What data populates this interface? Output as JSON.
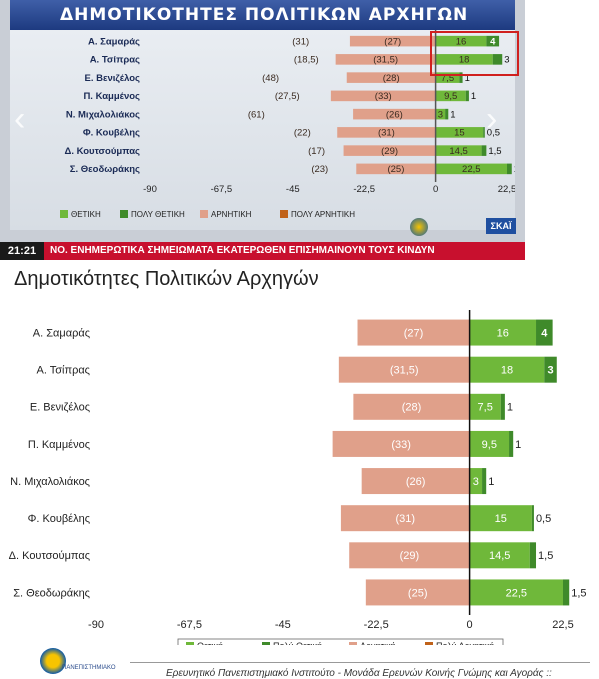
{
  "tv_panel": {
    "title": "ΔΗΜΟΤΙΚΟΤΗΤΕΣ ΠΟΛΙΤΙΚΩΝ ΑΡΧΗΓΩΝ",
    "time": "21:21",
    "ticker": "ΝΟ. ΕΝΗΜΕΡΩΤΙΚΑ ΣΗΜΕΙΩΜΑΤΑ ΕΚΑΤΕΡΩΘΕΝ ΕΠΙΣΗΜΑΙΝΟΥΝ ΤΟΥΣ ΚΙΝΔΥΝ",
    "channel_logo": "ΣΚΑΪ",
    "nav_left_icon": "chevron-left-icon",
    "nav_right_icon": "chevron-right-icon",
    "legend": [
      "ΘΕΤΙΚΗ",
      "ΠΟΛΥ ΘΕΤΙΚΗ",
      "ΑΡΝΗΤΙΚΗ",
      "ΠΟΛΥ ΑΡΝΗΤΙΚΗ"
    ],
    "highlight_color": "#d0201e"
  },
  "colors": {
    "positive": "#6fb83a",
    "very_positive": "#3f8a2a",
    "negative": "#e0a08a",
    "very_negative": "#c0621a"
  },
  "footer": {
    "text": "Ερευνητικό Πανεπιστημιακό Ινστιτούτο - Μονάδα Ερευνών Κοινής Γνώμης και Αγοράς ::",
    "logo_caption": "ΠΑΝΕΠΙΣΤΗΜΙΑΚΟ"
  },
  "chart_data": {
    "type": "bar",
    "orientation": "horizontal-diverging",
    "title": "Δημοτικότητες Πολιτικών Αρχηγών",
    "xlim": [
      -90,
      22.5
    ],
    "xticks": [
      "-90",
      "-67,5",
      "-45",
      "-22,5",
      "0",
      "22,5"
    ],
    "xtick_values": [
      -90,
      -67.5,
      -45,
      -22.5,
      0,
      22.5
    ],
    "grid": false,
    "legend_position": "bottom",
    "categories": [
      "Α. Σαμαράς",
      "Α. Τσίπρας",
      "Ε. Βενιζέλος",
      "Π. Καμμένος",
      "Ν. Μιχαλολιάκος",
      "Φ. Κουβέλης",
      "Δ. Κουτσούμπας",
      "Σ. Θεοδωράκης"
    ],
    "series": [
      {
        "name": "Θετική",
        "key": "positive",
        "values": [
          16,
          18,
          7.5,
          9.5,
          3,
          15,
          14.5,
          22.5
        ],
        "labels": [
          "16",
          "18",
          "7,5",
          "9,5",
          "3",
          "15",
          "14,5",
          "22,5"
        ]
      },
      {
        "name": "Πολύ Θετική",
        "key": "very_positive",
        "values": [
          4,
          3,
          1,
          1,
          1,
          0.5,
          1.5,
          1.5
        ],
        "labels": [
          "4",
          "3",
          "1",
          "1",
          "1",
          "0,5",
          "1,5",
          "1,5"
        ]
      },
      {
        "name": "Αρνητική",
        "key": "negative",
        "values": [
          -27,
          -31.5,
          -28,
          -33,
          -26,
          -31,
          -29,
          -25
        ],
        "labels": [
          "(27)",
          "(31,5)",
          "(28)",
          "(33)",
          "(26)",
          "(31)",
          "(29)",
          "(25)"
        ]
      },
      {
        "name": "Πολύ Αρνητική",
        "key": "very_negative",
        "values": [
          -31,
          -18.5,
          -48,
          -27.5,
          -61,
          -22,
          -17,
          -23
        ],
        "labels": [
          "(31)",
          "(18,5)",
          "(48)",
          "(27,5)",
          "(61)",
          "(22)",
          "(17)",
          "(23)"
        ]
      }
    ]
  }
}
